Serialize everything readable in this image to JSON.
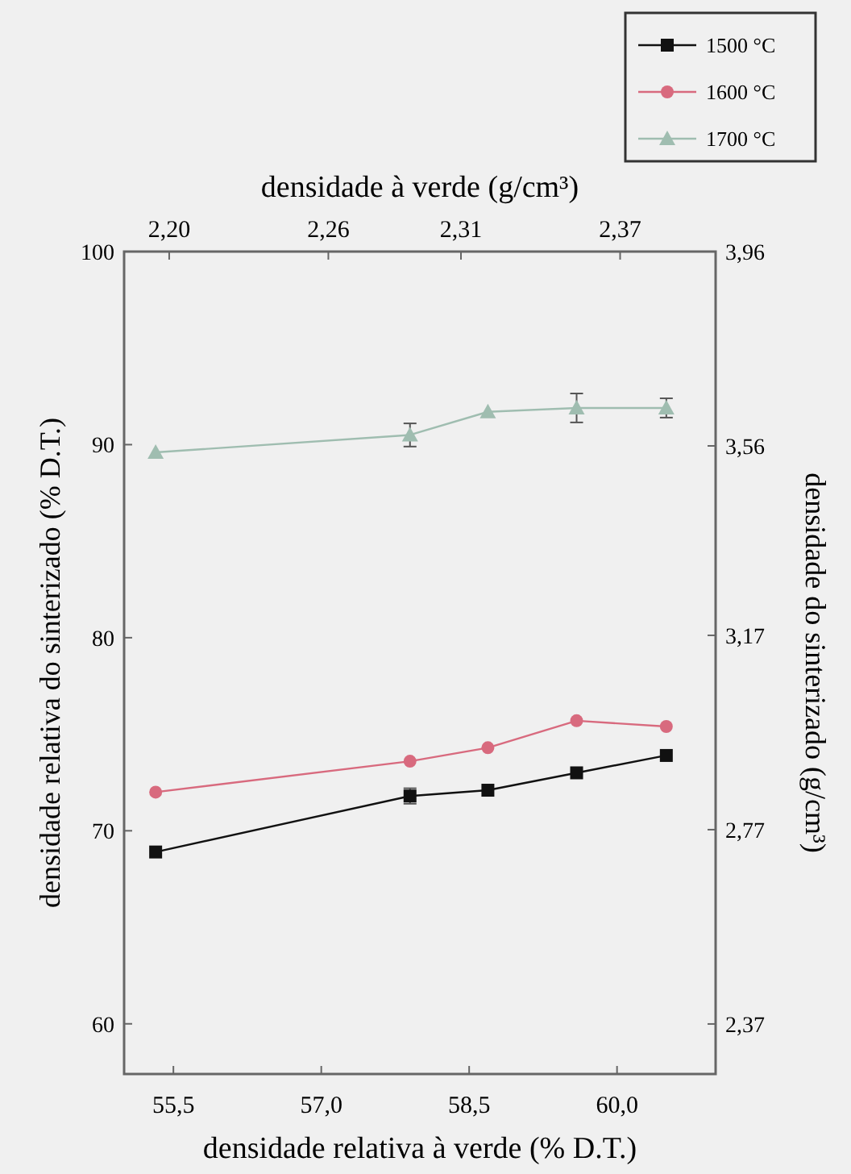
{
  "chart_data": {
    "type": "line",
    "xlabel": "densidade relativa à verde (% D.T.)",
    "ylabel": "densidade relativa do sinterizado (% D.T.)",
    "y2label": "densidade do sinterizado (g/cm³)",
    "x2label": "densidade à verde (g/cm³)",
    "x": [
      55.32,
      57.9,
      58.69,
      59.59,
      60.5
    ],
    "series": [
      {
        "name": "1500 °C",
        "color": "#111111",
        "marker": "square",
        "values": [
          68.9,
          71.8,
          72.1,
          73.0,
          73.9
        ],
        "errors": [
          null,
          0.4,
          null,
          null,
          null
        ]
      },
      {
        "name": "1600 °C",
        "color": "#d86a7e",
        "marker": "circle",
        "values": [
          72.0,
          73.6,
          74.3,
          75.7,
          75.4
        ]
      },
      {
        "name": "1700 °C",
        "color": "#9fbdb0",
        "marker": "triangle",
        "values": [
          89.6,
          90.5,
          91.7,
          91.9,
          91.9
        ],
        "errors": [
          null,
          0.6,
          null,
          0.75,
          0.5
        ]
      }
    ],
    "xlim": [
      55.0,
      61.0
    ],
    "xticks": [
      {
        "value": 55.5,
        "label": "55,5"
      },
      {
        "value": 57.0,
        "label": "57,0"
      },
      {
        "value": 58.5,
        "label": "58,5"
      },
      {
        "value": 60.0,
        "label": "60,0"
      }
    ],
    "ylim": [
      57.4,
      100
    ],
    "yticks": [
      60,
      70,
      80,
      90,
      100
    ],
    "x2lim": [
      2.183,
      2.406
    ],
    "x2ticks": [
      {
        "value": 2.2,
        "label": "2,20"
      },
      {
        "value": 2.26,
        "label": "2,26"
      },
      {
        "value": 2.31,
        "label": "2,31"
      },
      {
        "value": 2.37,
        "label": "2,37"
      }
    ],
    "y2lim": [
      2.267,
      3.96
    ],
    "y2ticks": [
      {
        "value": 2.37,
        "label": "2,37"
      },
      {
        "value": 2.77,
        "label": "2,77"
      },
      {
        "value": 3.17,
        "label": "3,17"
      },
      {
        "value": 3.56,
        "label": "3,56"
      },
      {
        "value": 3.96,
        "label": "3,96"
      }
    ],
    "legend": "top right",
    "grid": false
  }
}
